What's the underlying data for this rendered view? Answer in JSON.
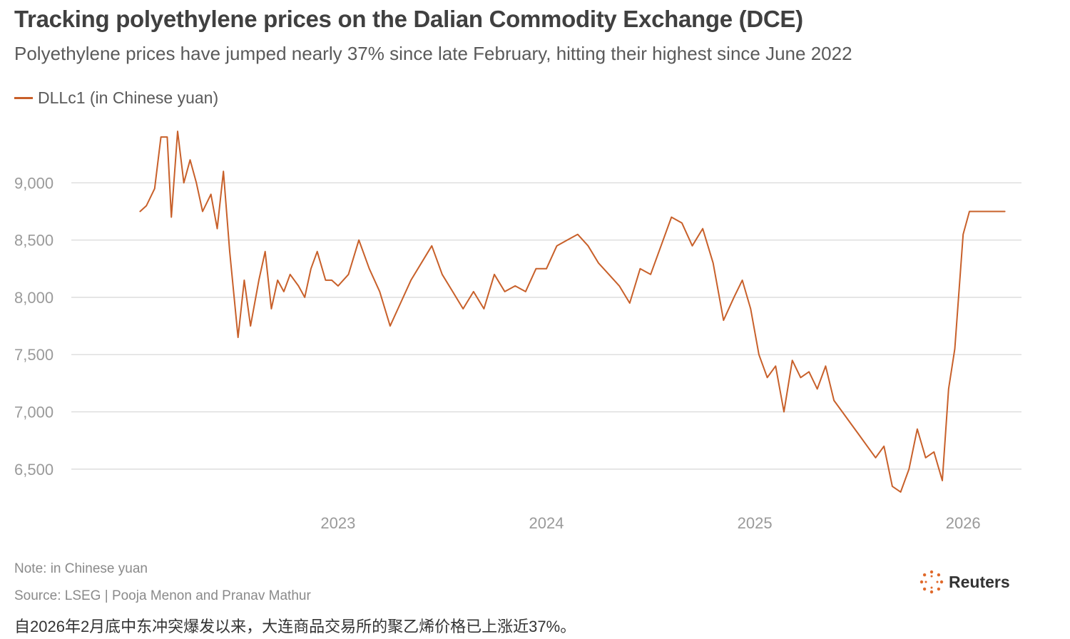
{
  "colors": {
    "line": "#c8602a",
    "grid": "#d9d9d9",
    "axis_text": "#9a9a9a"
  },
  "chart_data": {
    "type": "line",
    "title": "Tracking polyethylene prices on the Dalian Commodity Exchange (DCE)",
    "subtitle": "Polyethylene prices have jumped nearly 37% since late February, hitting their highest since June 2022",
    "series": [
      {
        "name": "DLLc1 (in Chinese yuan)",
        "x": [
          2022.05,
          2022.08,
          2022.12,
          2022.15,
          2022.18,
          2022.2,
          2022.23,
          2022.26,
          2022.29,
          2022.32,
          2022.35,
          2022.39,
          2022.42,
          2022.45,
          2022.48,
          2022.52,
          2022.55,
          2022.58,
          2022.62,
          2022.65,
          2022.68,
          2022.71,
          2022.74,
          2022.77,
          2022.81,
          2022.84,
          2022.87,
          2022.9,
          2022.94,
          2022.97,
          2023.0,
          2023.05,
          2023.1,
          2023.15,
          2023.2,
          2023.25,
          2023.3,
          2023.35,
          2023.4,
          2023.45,
          2023.5,
          2023.55,
          2023.6,
          2023.65,
          2023.7,
          2023.75,
          2023.8,
          2023.85,
          2023.9,
          2023.95,
          2024.0,
          2024.05,
          2024.1,
          2024.15,
          2024.2,
          2024.25,
          2024.3,
          2024.35,
          2024.4,
          2024.45,
          2024.5,
          2024.55,
          2024.6,
          2024.65,
          2024.7,
          2024.75,
          2024.8,
          2024.85,
          2024.9,
          2024.94,
          2024.98,
          2025.02,
          2025.06,
          2025.1,
          2025.14,
          2025.18,
          2025.22,
          2025.26,
          2025.3,
          2025.34,
          2025.38,
          2025.42,
          2025.46,
          2025.5,
          2025.54,
          2025.58,
          2025.62,
          2025.66,
          2025.7,
          2025.74,
          2025.78,
          2025.82,
          2025.86,
          2025.9,
          2025.93,
          2025.96,
          2026.0,
          2026.03,
          2026.06,
          2026.09,
          2026.12,
          2026.14,
          2026.16,
          2026.18,
          2026.2
        ],
        "values": [
          8750,
          8800,
          8950,
          9400,
          9400,
          8700,
          9450,
          9000,
          9200,
          9000,
          8750,
          8900,
          8600,
          9100,
          8400,
          7650,
          8150,
          7750,
          8150,
          8400,
          7900,
          8150,
          8050,
          8200,
          8100,
          8000,
          8250,
          8400,
          8150,
          8150,
          8100,
          8200,
          8500,
          8250,
          8050,
          7750,
          7950,
          8150,
          8300,
          8450,
          8200,
          8050,
          7900,
          8050,
          7900,
          8200,
          8050,
          8100,
          8050,
          8250,
          8250,
          8450,
          8500,
          8550,
          8450,
          8300,
          8200,
          8100,
          7950,
          8250,
          8200,
          8450,
          8700,
          8650,
          8450,
          8600,
          8300,
          7800,
          8000,
          8150,
          7900,
          7500,
          7300,
          7400,
          7000,
          7450,
          7300,
          7350,
          7200,
          7400,
          7100,
          7000,
          6900,
          6800,
          6700,
          6600,
          6700,
          6350,
          6300,
          6500,
          6850,
          6600,
          6650,
          6400,
          7200,
          7550,
          8550,
          8750,
          8750,
          8750,
          8750,
          8750,
          8750,
          8750,
          8750
        ],
        "color": "#c8602a"
      }
    ],
    "x_ticks": [
      "2023",
      "2024",
      "2025",
      "2026"
    ],
    "x_tick_values": [
      2023,
      2024,
      2025,
      2026
    ],
    "y_ticks": [
      "6,500",
      "7,000",
      "7,500",
      "8,000",
      "8,500",
      "9,000"
    ],
    "y_tick_values": [
      6500,
      7000,
      7500,
      8000,
      8500,
      9000
    ],
    "xlim": [
      2021.72,
      2026.28
    ],
    "ylim": [
      6200,
      9600
    ],
    "grid": true,
    "legend_placement": "top-left"
  },
  "footer": {
    "note": "Note: in Chinese yuan",
    "source": "Source: LSEG | Pooja Menon and Pranav Mathur",
    "caption": "自2026年2月底中东冲突爆发以来，大连商品交易所的聚乙烯价格已上涨近37%。",
    "brand": "Reuters"
  }
}
